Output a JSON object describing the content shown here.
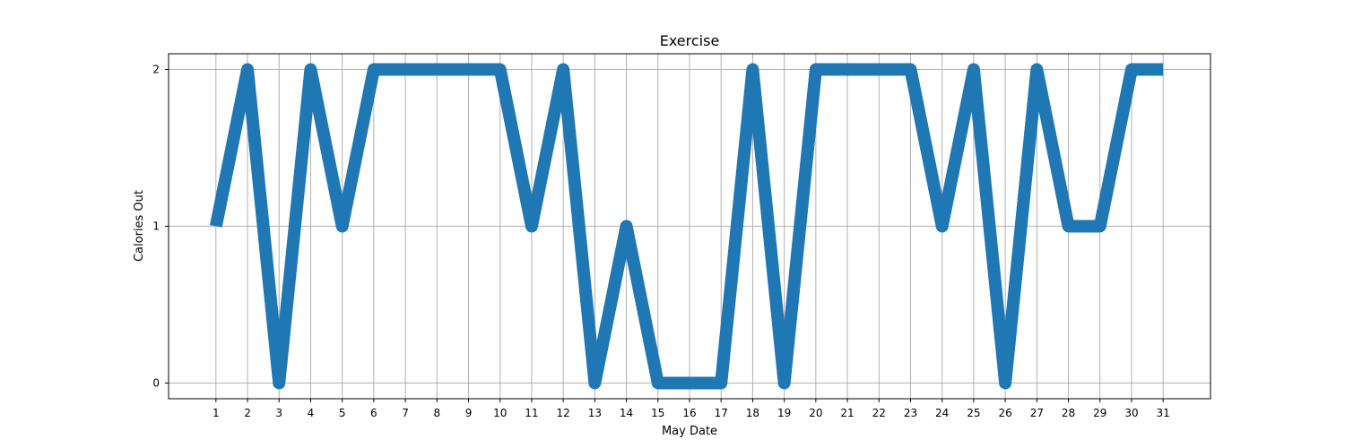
{
  "chart_data": {
    "type": "line",
    "title": "Exercise",
    "xlabel": "May Date",
    "ylabel": "Calories Out",
    "x": [
      1,
      2,
      3,
      4,
      5,
      6,
      7,
      8,
      9,
      10,
      11,
      12,
      13,
      14,
      15,
      16,
      17,
      18,
      19,
      20,
      21,
      22,
      23,
      24,
      25,
      26,
      27,
      28,
      29,
      30,
      31
    ],
    "series": [
      {
        "values": [
          1,
          2,
          0,
          2,
          1,
          2,
          2,
          2,
          2,
          2,
          1,
          2,
          0,
          1,
          0,
          0,
          0,
          2,
          0,
          2,
          2,
          2,
          2,
          1,
          2,
          0,
          2,
          1,
          1,
          2,
          2
        ]
      }
    ],
    "xlim": [
      -0.5,
      32.5
    ],
    "ylim": [
      -0.1,
      2.1
    ],
    "xticks": [
      1,
      2,
      3,
      4,
      5,
      6,
      7,
      8,
      9,
      10,
      11,
      12,
      13,
      14,
      15,
      16,
      17,
      18,
      19,
      20,
      21,
      22,
      23,
      24,
      25,
      26,
      27,
      28,
      29,
      30,
      31
    ],
    "yticks": [
      0,
      1,
      2
    ],
    "grid": true,
    "line_color": "#1f77b4"
  }
}
